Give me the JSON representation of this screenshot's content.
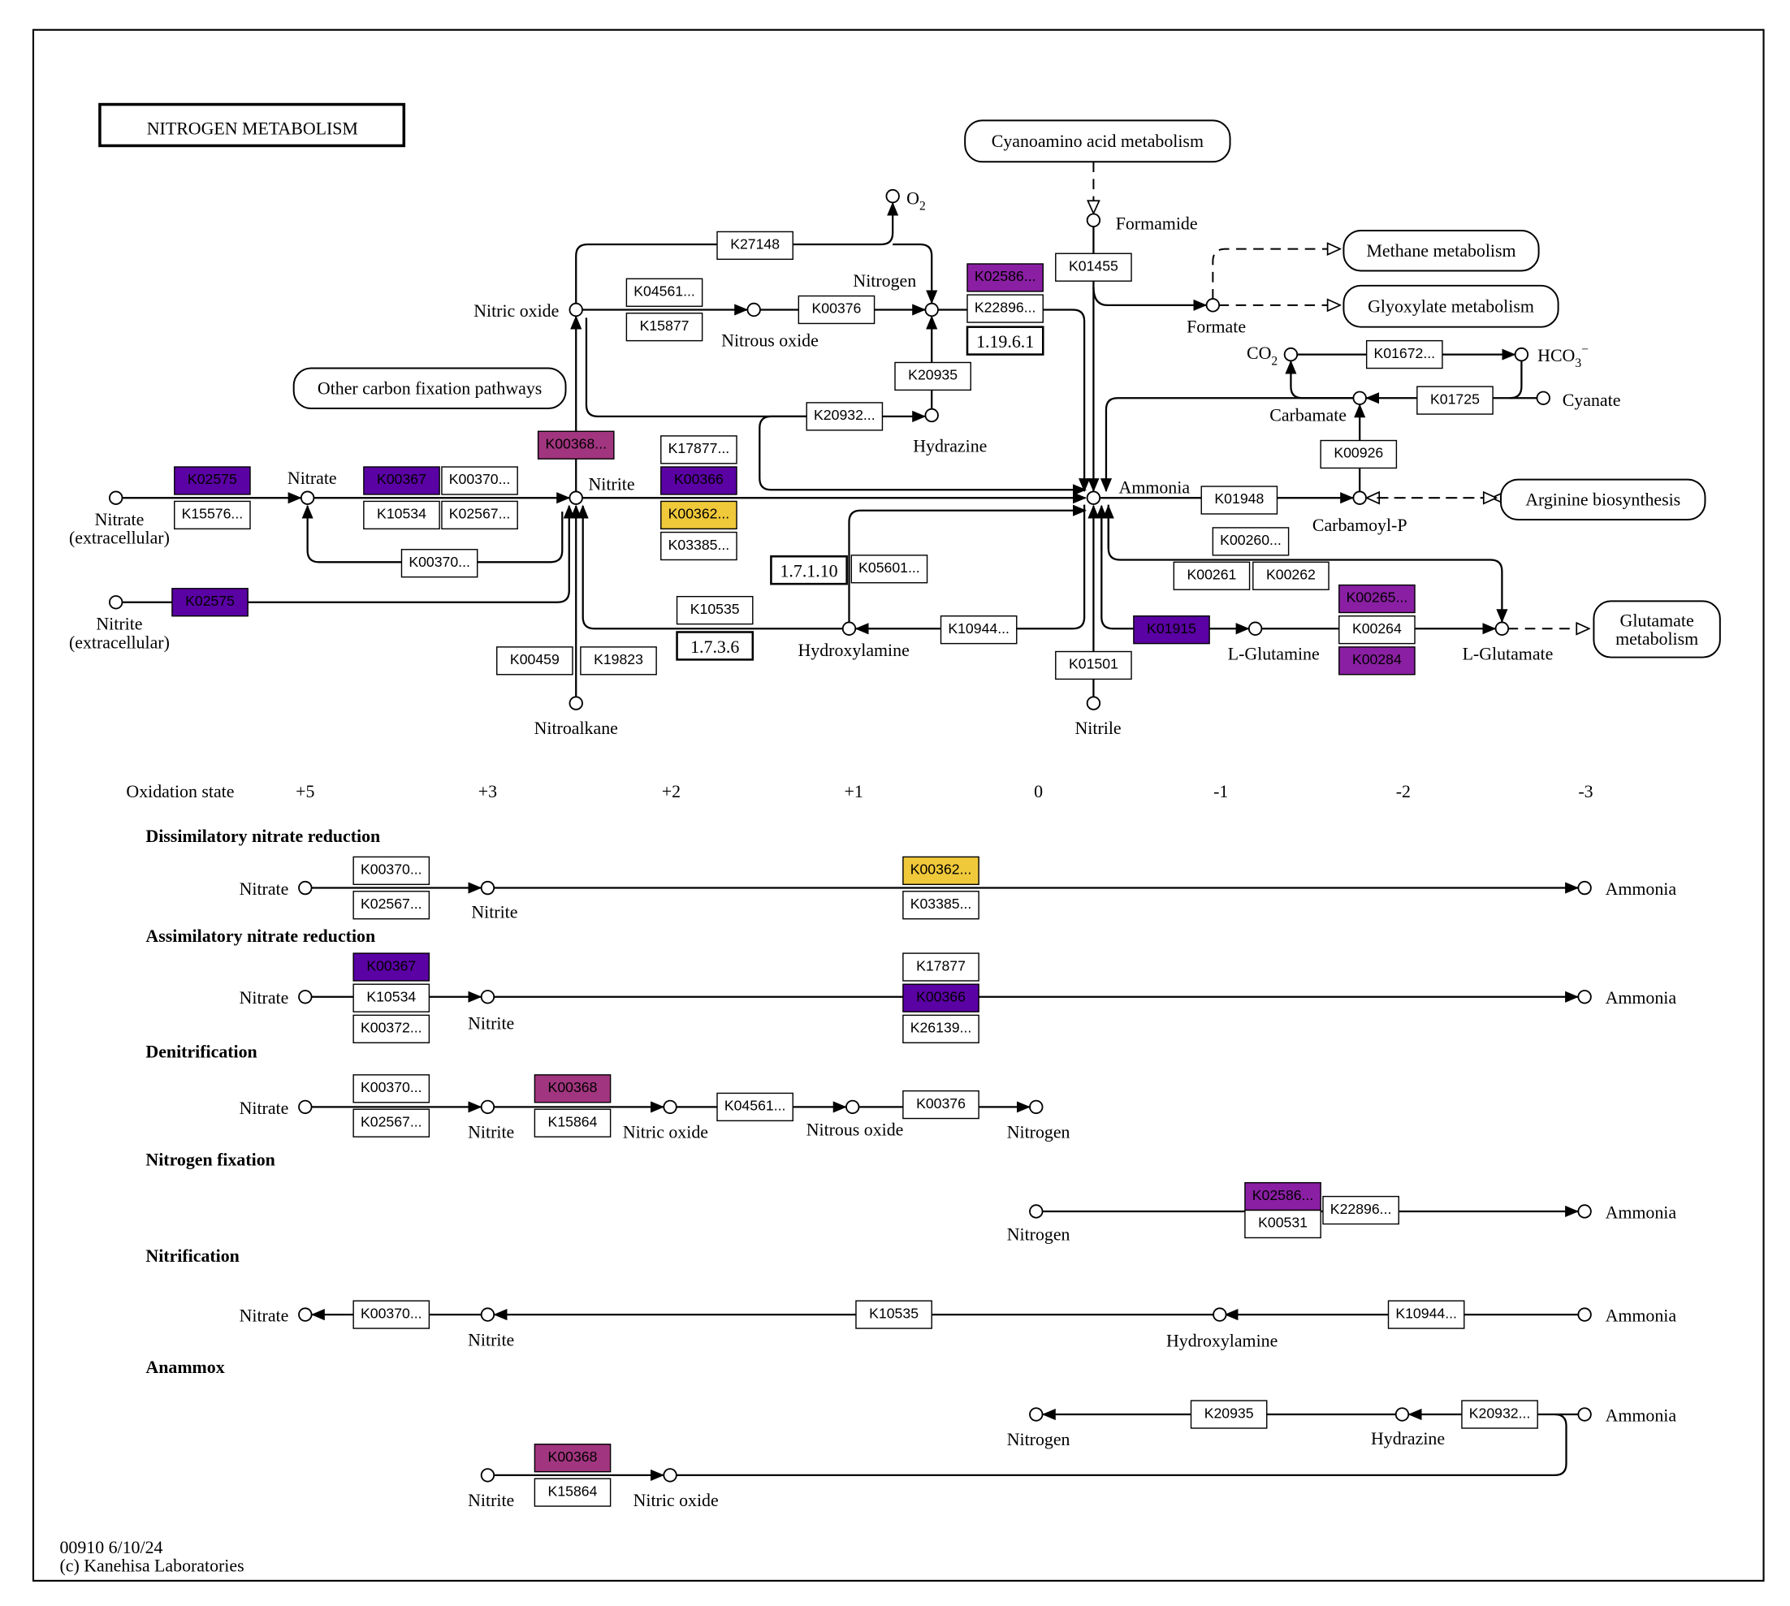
{
  "title": "NITROGEN  METABOLISM",
  "footer": {
    "line1": "00910 6/10/24",
    "line2": "(c) Kanehisa Laboratories"
  },
  "colors": {
    "dark": "#5a02a3",
    "purple": "#8a1fa3",
    "magenta": "#a2357f",
    "yellow": "#f0c93a",
    "none": "#ffffff"
  },
  "map_links": [
    "Cyanoamino acid metabolism",
    "Methane metabolism",
    "Glyoxylate metabolism",
    "Other carbon fixation pathways",
    "Arginine biosynthesis",
    "Glutamate metabolism"
  ],
  "main_compounds": [
    {
      "label": "Nitrate",
      "label2": "(extracellular)"
    },
    {
      "label": "Nitrate"
    },
    {
      "label": "Nitrite"
    },
    {
      "label": "Nitrite",
      "label2": "(extracellular)"
    },
    {
      "label": "Nitric oxide"
    },
    {
      "label": "Nitrous oxide"
    },
    {
      "label": "Nitrogen"
    },
    {
      "label": "O",
      "sub": "2"
    },
    {
      "label": "Hydrazine"
    },
    {
      "label": "Hydroxylamine"
    },
    {
      "label": "Nitroalkane"
    },
    {
      "label": "Ammonia"
    },
    {
      "label": "Formamide"
    },
    {
      "label": "Formate"
    },
    {
      "label": "CO",
      "sub": "2"
    },
    {
      "label": "HCO",
      "sub": "3",
      "sup": "−"
    },
    {
      "label": "Carbamate"
    },
    {
      "label": "Cyanate"
    },
    {
      "label": "Carbamoyl-P"
    },
    {
      "label": "L-Glutamine"
    },
    {
      "label": "L-Glutamate"
    },
    {
      "label": "Nitrile"
    }
  ],
  "main_genes": [
    {
      "label": "K02575",
      "color": "dark"
    },
    {
      "label": "K15576...",
      "color": "none"
    },
    {
      "label": "K00367",
      "color": "dark"
    },
    {
      "label": "K00370...",
      "color": "none"
    },
    {
      "label": "K10534",
      "color": "none"
    },
    {
      "label": "K02567...",
      "color": "none"
    },
    {
      "label": "K00370...",
      "color": "none"
    },
    {
      "label": "K02575",
      "color": "dark"
    },
    {
      "label": "K00368...",
      "color": "magenta"
    },
    {
      "label": "K17877...",
      "color": "none"
    },
    {
      "label": "K00366",
      "color": "dark"
    },
    {
      "label": "K00362...",
      "color": "yellow"
    },
    {
      "label": "K03385...",
      "color": "none"
    },
    {
      "label": "K10535",
      "color": "none"
    },
    {
      "label": "K00459",
      "color": "none"
    },
    {
      "label": "K19823",
      "color": "none"
    },
    {
      "label": "K27148",
      "color": "none"
    },
    {
      "label": "K04561...",
      "color": "none"
    },
    {
      "label": "K15877",
      "color": "none"
    },
    {
      "label": "K00376",
      "color": "none"
    },
    {
      "label": "K02586...",
      "color": "purple"
    },
    {
      "label": "K22896...",
      "color": "none"
    },
    {
      "label": "K20935",
      "color": "none"
    },
    {
      "label": "K20932...",
      "color": "none"
    },
    {
      "label": "K05601...",
      "color": "none"
    },
    {
      "label": "K10944...",
      "color": "none"
    },
    {
      "label": "K01455",
      "color": "none"
    },
    {
      "label": "K01501",
      "color": "none"
    },
    {
      "label": "K01672...",
      "color": "none"
    },
    {
      "label": "K01725",
      "color": "none"
    },
    {
      "label": "K00926",
      "color": "none"
    },
    {
      "label": "K01948",
      "color": "none"
    },
    {
      "label": "K00260...",
      "color": "none"
    },
    {
      "label": "K00261",
      "color": "none"
    },
    {
      "label": "K00262",
      "color": "none"
    },
    {
      "label": "K00265...",
      "color": "purple"
    },
    {
      "label": "K00264",
      "color": "none"
    },
    {
      "label": "K00284",
      "color": "purple"
    },
    {
      "label": "K01915",
      "color": "dark"
    }
  ],
  "ec_numbers": [
    "1.19.6.1",
    "1.7.1.10",
    "1.7.3.6"
  ],
  "oxidation": {
    "label": "Oxidation state",
    "states": [
      "+5",
      "+3",
      "+2",
      "+1",
      "0",
      "-1",
      "-2",
      "-3"
    ]
  },
  "sections": [
    "Dissimilatory nitrate reduction",
    "Assimilatory nitrate reduction",
    "Denitrification",
    "Nitrogen fixation",
    "Nitrification",
    "Anammox"
  ],
  "module_compounds": [
    "Nitrate",
    "Nitrite",
    "Ammonia",
    "Nitrate",
    "Nitrite",
    "Ammonia",
    "Nitrate",
    "Nitrite",
    "Nitric oxide",
    "Nitrous oxide",
    "Nitrogen",
    "Nitrogen",
    "Ammonia",
    "Nitrate",
    "Nitrite",
    "Hydroxylamine",
    "Ammonia",
    "Nitrogen",
    "Hydrazine",
    "Ammonia",
    "Nitrite",
    "Nitric oxide"
  ],
  "module_genes": [
    {
      "label": "K00370...",
      "color": "none"
    },
    {
      "label": "K02567...",
      "color": "none"
    },
    {
      "label": "K00362...",
      "color": "yellow"
    },
    {
      "label": "K03385...",
      "color": "none"
    },
    {
      "label": "K00367",
      "color": "dark"
    },
    {
      "label": "K10534",
      "color": "none"
    },
    {
      "label": "K00372...",
      "color": "none"
    },
    {
      "label": "K17877",
      "color": "none"
    },
    {
      "label": "K00366",
      "color": "dark"
    },
    {
      "label": "K26139...",
      "color": "none"
    },
    {
      "label": "K00370...",
      "color": "none"
    },
    {
      "label": "K02567...",
      "color": "none"
    },
    {
      "label": "K00368",
      "color": "magenta"
    },
    {
      "label": "K15864",
      "color": "none"
    },
    {
      "label": "K04561...",
      "color": "none"
    },
    {
      "label": "K00376",
      "color": "none"
    },
    {
      "label": "K02586...",
      "color": "purple"
    },
    {
      "label": "K00531",
      "color": "none"
    },
    {
      "label": "K22896...",
      "color": "none"
    },
    {
      "label": "K00370...",
      "color": "none"
    },
    {
      "label": "K10535",
      "color": "none"
    },
    {
      "label": "K10944...",
      "color": "none"
    },
    {
      "label": "K20935",
      "color": "none"
    },
    {
      "label": "K20932...",
      "color": "none"
    },
    {
      "label": "K00368",
      "color": "magenta"
    },
    {
      "label": "K15864",
      "color": "none"
    }
  ]
}
